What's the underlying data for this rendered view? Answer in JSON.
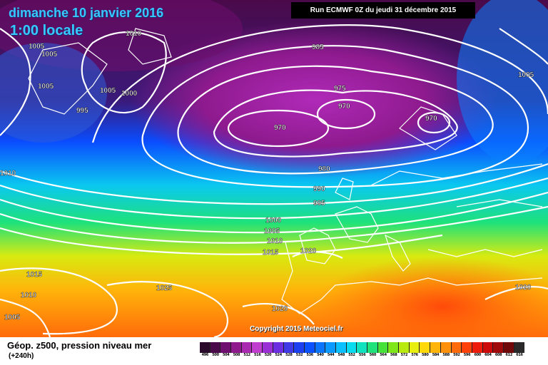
{
  "title": {
    "date": "dimanche 10 janvier 2016",
    "time": "1:00 locale"
  },
  "run_label": "Run ECMWF 0Z du jeudi 31 décembre 2015",
  "copyright": "Copyright 2015 Meteociel.fr",
  "footer": {
    "title": "Géop. z500, pression niveau mer",
    "lead": "(+240h)"
  },
  "isobar_labels": [
    "1005",
    "1005",
    "1010",
    "1005",
    "1005",
    "1000",
    "995",
    "985",
    "975",
    "970",
    "970",
    "970",
    "980",
    "990",
    "995",
    "1000",
    "1005",
    "1010",
    "1015",
    "1020",
    "1010",
    "1015",
    "1010",
    "1005",
    "1025",
    "1020",
    "1020",
    "1005"
  ],
  "colors": {
    "land_line": "#ffffff",
    "isobar": "#ffffff",
    "run_bg": "#000000",
    "title_text": "#37c8ff"
  },
  "scale": [
    {
      "v": "496",
      "c": "#2a0a2a"
    },
    {
      "v": "500",
      "c": "#4a0a4a"
    },
    {
      "v": "504",
      "c": "#6e0e6e"
    },
    {
      "v": "508",
      "c": "#8e1a8e"
    },
    {
      "v": "512",
      "c": "#a92ab0"
    },
    {
      "v": "516",
      "c": "#c03ecf"
    },
    {
      "v": "520",
      "c": "#9a2fd6"
    },
    {
      "v": "524",
      "c": "#6b2ee0"
    },
    {
      "v": "528",
      "c": "#3f3ae6"
    },
    {
      "v": "532",
      "c": "#1c3ff0"
    },
    {
      "v": "536",
      "c": "#0a52ff"
    },
    {
      "v": "540",
      "c": "#0a75ff"
    },
    {
      "v": "544",
      "c": "#0a99ff"
    },
    {
      "v": "548",
      "c": "#0ac0ff"
    },
    {
      "v": "552",
      "c": "#0adcf0"
    },
    {
      "v": "556",
      "c": "#10e2c0"
    },
    {
      "v": "560",
      "c": "#1ee27a"
    },
    {
      "v": "564",
      "c": "#46e23a"
    },
    {
      "v": "568",
      "c": "#7fe61a"
    },
    {
      "v": "572",
      "c": "#b8ea10"
    },
    {
      "v": "576",
      "c": "#e8ee10"
    },
    {
      "v": "580",
      "c": "#ffd80a"
    },
    {
      "v": "584",
      "c": "#ffb40a"
    },
    {
      "v": "588",
      "c": "#ff900a"
    },
    {
      "v": "592",
      "c": "#ff6a0a"
    },
    {
      "v": "596",
      "c": "#ff420a"
    },
    {
      "v": "600",
      "c": "#ee1c0a"
    },
    {
      "v": "604",
      "c": "#cc0a0a"
    },
    {
      "v": "608",
      "c": "#a00a0a"
    },
    {
      "v": "612",
      "c": "#700a0a"
    },
    {
      "v": "616",
      "c": "#2a2a2a"
    }
  ]
}
